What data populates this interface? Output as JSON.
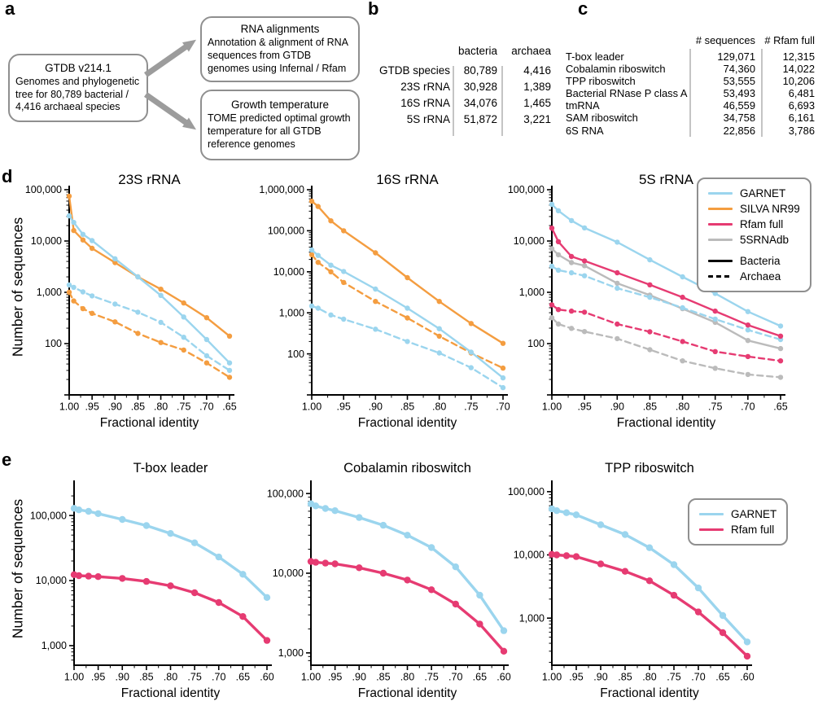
{
  "colors": {
    "garnet": "#9BD5EE",
    "silva": "#F49D40",
    "rfam": "#E63B72",
    "db5s": "#BBBBBB",
    "black": "#000000",
    "axis": "#000000",
    "box_border": "#8F8F8F",
    "arrow": "#9C9C9C",
    "separator": "#C4C4C4"
  },
  "panels": {
    "a": {
      "letter": "a",
      "boxes": [
        {
          "title": "GTDB v214.1",
          "body": "Genomes and phylogenetic tree for 80,789 bacterial / 4,416 archaeal species"
        },
        {
          "title": "RNA alignments",
          "body": "Annotation & alignment of RNA sequences from GTDB genomes using Infernal / Rfam"
        },
        {
          "title": "Growth temperature",
          "body": "TOME predicted optimal growth temperature for all GTDB reference genomes"
        }
      ]
    },
    "b": {
      "letter": "b",
      "table": {
        "col_headers": [
          "bacteria",
          "archaea"
        ],
        "rows": [
          {
            "label": "GTDB species",
            "bacteria": "80,789",
            "archaea": "4,416"
          },
          {
            "label": "23S rRNA",
            "bacteria": "30,928",
            "archaea": "1,389"
          },
          {
            "label": "16S rRNA",
            "bacteria": "34,076",
            "archaea": "1,465"
          },
          {
            "label": "5S rRNA",
            "bacteria": "51,872",
            "archaea": "3,221"
          }
        ]
      }
    },
    "c": {
      "letter": "c",
      "table": {
        "col_headers": [
          "# sequences",
          "# Rfam full"
        ],
        "rows": [
          {
            "label": "T-box leader",
            "sequences": "129,071",
            "rfam_full": "12,315"
          },
          {
            "label": "Cobalamin riboswitch",
            "sequences": "74,360",
            "rfam_full": "14,022"
          },
          {
            "label": "TPP riboswitch",
            "sequences": "53,555",
            "rfam_full": "10,206"
          },
          {
            "label": "Bacterial RNase P class A",
            "sequences": "53,493",
            "rfam_full": "6,481"
          },
          {
            "label": "tmRNA",
            "sequences": "46,559",
            "rfam_full": "6,693"
          },
          {
            "label": "SAM riboswitch",
            "sequences": "34,758",
            "rfam_full": "6,161"
          },
          {
            "label": "6S RNA",
            "sequences": "22,856",
            "rfam_full": "3,786"
          }
        ]
      }
    },
    "d": {
      "letter": "d",
      "ylabel": "Number of sequences",
      "legend": {
        "entries": [
          {
            "label": "GARNET",
            "color": "garnet"
          },
          {
            "label": "SILVA NR99",
            "color": "silva"
          },
          {
            "label": "Rfam full",
            "color": "rfam"
          },
          {
            "label": "5SRNAdb",
            "color": "db5s"
          }
        ],
        "styles": [
          {
            "label": "Bacteria",
            "dash": false
          },
          {
            "label": "Archaea",
            "dash": true
          }
        ]
      }
    },
    "e": {
      "letter": "e",
      "ylabel": "Number of sequences",
      "legend": {
        "entries": [
          {
            "label": "GARNET",
            "color": "garnet"
          },
          {
            "label": "Rfam full",
            "color": "rfam"
          }
        ]
      }
    }
  },
  "chart_data": [
    {
      "id": "23s-rrna",
      "type": "line",
      "title": "23S rRNA",
      "xlabel": "Fractional identity",
      "ylabel": "Number of sequences",
      "y_scale": "log",
      "x_reversed": true,
      "x_ticks": [
        1.0,
        0.95,
        0.9,
        0.85,
        0.8,
        0.75,
        0.7,
        0.65
      ],
      "x_tick_labels": [
        "1.00",
        ".95",
        ".90",
        ".85",
        ".80",
        ".75",
        ".70",
        ".65"
      ],
      "y_ticks": [
        100,
        1000,
        10000,
        100000
      ],
      "ylim": [
        10,
        100000
      ],
      "x": [
        1.0,
        0.99,
        0.97,
        0.95,
        0.9,
        0.85,
        0.8,
        0.75,
        0.7,
        0.65
      ],
      "series": [
        {
          "name": "SILVA NR99 bacteria",
          "color": "silva",
          "dash": false,
          "values": [
            75000,
            16000,
            10500,
            7200,
            3800,
            2000,
            1150,
            620,
            320,
            140
          ]
        },
        {
          "name": "SILVA NR99 archaea",
          "color": "silva",
          "dash": true,
          "values": [
            1000,
            680,
            480,
            390,
            265,
            158,
            105,
            75,
            42,
            22
          ]
        },
        {
          "name": "GARNET bacteria",
          "color": "garnet",
          "dash": false,
          "values": [
            30928,
            23000,
            13500,
            10200,
            4500,
            2000,
            870,
            330,
            120,
            42
          ]
        },
        {
          "name": "GARNET archaea",
          "color": "garnet",
          "dash": true,
          "values": [
            1389,
            1250,
            1020,
            850,
            590,
            410,
            260,
            133,
            58,
            30
          ]
        }
      ]
    },
    {
      "id": "16s-rrna",
      "type": "line",
      "title": "16S rRNA",
      "xlabel": "Fractional identity",
      "ylabel": "Number of sequences",
      "y_scale": "log",
      "x_reversed": true,
      "x_ticks": [
        1.0,
        0.95,
        0.9,
        0.85,
        0.8,
        0.75,
        0.7
      ],
      "x_tick_labels": [
        "1.00",
        ".95",
        ".90",
        ".85",
        ".80",
        ".75",
        ".70"
      ],
      "y_ticks": [
        100,
        1000,
        10000,
        100000,
        1000000
      ],
      "ylim": [
        10,
        1000000
      ],
      "x": [
        1.0,
        0.99,
        0.97,
        0.95,
        0.9,
        0.85,
        0.8,
        0.75,
        0.7
      ],
      "series": [
        {
          "name": "SILVA NR99 bacteria",
          "color": "silva",
          "dash": false,
          "values": [
            525000,
            390000,
            175000,
            100000,
            29000,
            7200,
            1900,
            550,
            180
          ]
        },
        {
          "name": "SILVA NR99 archaea",
          "color": "silva",
          "dash": true,
          "values": [
            26000,
            17000,
            10000,
            5500,
            1900,
            750,
            270,
            105,
            45
          ]
        },
        {
          "name": "GARNET bacteria",
          "color": "garnet",
          "dash": false,
          "values": [
            34076,
            25000,
            14500,
            10200,
            3800,
            1300,
            410,
            110,
            26
          ]
        },
        {
          "name": "GARNET archaea",
          "color": "garnet",
          "dash": true,
          "values": [
            1465,
            1300,
            890,
            700,
            400,
            200,
            105,
            46,
            15
          ]
        }
      ]
    },
    {
      "id": "5s-rrna",
      "type": "line",
      "title": "5S rRNA",
      "xlabel": "Fractional identity",
      "ylabel": "Number of sequences",
      "y_scale": "log",
      "x_reversed": true,
      "x_ticks": [
        1.0,
        0.95,
        0.9,
        0.85,
        0.8,
        0.75,
        0.7,
        0.65
      ],
      "x_tick_labels": [
        "1.00",
        ".95",
        ".90",
        ".85",
        ".80",
        ".75",
        ".70",
        ".65"
      ],
      "y_ticks": [
        100,
        1000,
        10000,
        100000
      ],
      "ylim": [
        10,
        100000
      ],
      "x": [
        1.0,
        0.99,
        0.97,
        0.95,
        0.9,
        0.85,
        0.8,
        0.75,
        0.7,
        0.65
      ],
      "series": [
        {
          "name": "5SRNAdb bacteria",
          "color": "db5s",
          "dash": false,
          "values": [
            7100,
            5400,
            3800,
            3300,
            1500,
            880,
            480,
            260,
            115,
            80
          ]
        },
        {
          "name": "5SRNAdb archaea",
          "color": "db5s",
          "dash": true,
          "values": [
            320,
            240,
            198,
            172,
            125,
            76,
            46,
            33,
            25,
            22
          ]
        },
        {
          "name": "GARNET archaea",
          "color": "garnet",
          "dash": true,
          "values": [
            3221,
            2700,
            2400,
            2100,
            1200,
            800,
            500,
            300,
            185,
            120
          ]
        },
        {
          "name": "Rfam full bacteria",
          "color": "rfam",
          "dash": false,
          "values": [
            17800,
            9700,
            5000,
            4100,
            2400,
            1400,
            800,
            430,
            230,
            140
          ]
        },
        {
          "name": "Rfam full archaea",
          "color": "rfam",
          "dash": true,
          "values": [
            570,
            460,
            430,
            410,
            240,
            170,
            110,
            70,
            56,
            46
          ]
        },
        {
          "name": "GARNET bacteria",
          "color": "garnet",
          "dash": false,
          "values": [
            51872,
            39000,
            25000,
            18000,
            9500,
            4300,
            2000,
            950,
            420,
            220
          ]
        }
      ]
    },
    {
      "id": "t-box-leader",
      "type": "line",
      "title": "T-box leader",
      "xlabel": "Fractional identity",
      "ylabel": "Number of sequences",
      "y_scale": "log",
      "x_reversed": true,
      "x_ticks": [
        1.0,
        0.95,
        0.9,
        0.85,
        0.8,
        0.75,
        0.7,
        0.65,
        0.6
      ],
      "x_tick_labels": [
        "1.00",
        ".95",
        ".90",
        ".85",
        ".80",
        ".75",
        ".70",
        ".65",
        ".60"
      ],
      "y_ticks": [
        1000,
        10000,
        100000
      ],
      "ylim": [
        500,
        300000
      ],
      "x": [
        1.0,
        0.99,
        0.97,
        0.95,
        0.9,
        0.85,
        0.8,
        0.75,
        0.7,
        0.65,
        0.6
      ],
      "series": [
        {
          "name": "GARNET",
          "color": "garnet",
          "dash": false,
          "values": [
            129071,
            122000,
            116000,
            107000,
            87000,
            70000,
            53000,
            38000,
            23000,
            12500,
            5500
          ]
        },
        {
          "name": "Rfam full",
          "color": "rfam",
          "dash": false,
          "values": [
            12315,
            11900,
            11700,
            11500,
            10800,
            9700,
            8300,
            6500,
            4600,
            2800,
            1200
          ]
        }
      ]
    },
    {
      "id": "cobalamin-riboswitch",
      "type": "line",
      "title": "Cobalamin riboswitch",
      "xlabel": "Fractional identity",
      "ylabel": "Number of sequences",
      "y_scale": "log",
      "x_reversed": true,
      "x_ticks": [
        1.0,
        0.95,
        0.9,
        0.85,
        0.8,
        0.75,
        0.7,
        0.65,
        0.6
      ],
      "x_tick_labels": [
        "1.00",
        ".95",
        ".90",
        ".85",
        ".80",
        ".75",
        ".70",
        ".65",
        ".60"
      ],
      "y_ticks": [
        1000,
        10000,
        100000
      ],
      "ylim": [
        700,
        130000
      ],
      "x": [
        1.0,
        0.99,
        0.97,
        0.95,
        0.9,
        0.85,
        0.8,
        0.75,
        0.7,
        0.65,
        0.6
      ],
      "series": [
        {
          "name": "GARNET",
          "color": "garnet",
          "dash": false,
          "values": [
            74360,
            70000,
            65000,
            61000,
            50000,
            40000,
            30000,
            21000,
            12000,
            5300,
            1900
          ]
        },
        {
          "name": "Rfam full",
          "color": "rfam",
          "dash": false,
          "values": [
            14022,
            13700,
            13400,
            13100,
            11700,
            10000,
            8200,
            6200,
            4100,
            2300,
            1050
          ]
        }
      ]
    },
    {
      "id": "tpp-riboswitch",
      "type": "line",
      "title": "TPP riboswitch",
      "xlabel": "Fractional identity",
      "ylabel": "Number of sequences",
      "y_scale": "log",
      "x_reversed": true,
      "x_ticks": [
        1.0,
        0.95,
        0.9,
        0.85,
        0.8,
        0.75,
        0.7,
        0.65,
        0.6
      ],
      "x_tick_labels": [
        "1.00",
        ".95",
        ".90",
        ".85",
        ".80",
        ".75",
        ".70",
        ".65",
        ".60"
      ],
      "y_ticks": [
        1000,
        10000,
        100000
      ],
      "ylim": [
        180,
        130000
      ],
      "x": [
        1.0,
        0.99,
        0.97,
        0.95,
        0.9,
        0.85,
        0.8,
        0.75,
        0.7,
        0.65,
        0.6
      ],
      "series": [
        {
          "name": "GARNET",
          "color": "garnet",
          "dash": false,
          "values": [
            53555,
            50000,
            46500,
            43000,
            30000,
            21000,
            13000,
            7000,
            3000,
            1100,
            420
          ]
        },
        {
          "name": "Rfam full",
          "color": "rfam",
          "dash": false,
          "values": [
            10206,
            10000,
            9700,
            9400,
            7200,
            5500,
            3900,
            2300,
            1250,
            590,
            250
          ]
        }
      ]
    }
  ]
}
